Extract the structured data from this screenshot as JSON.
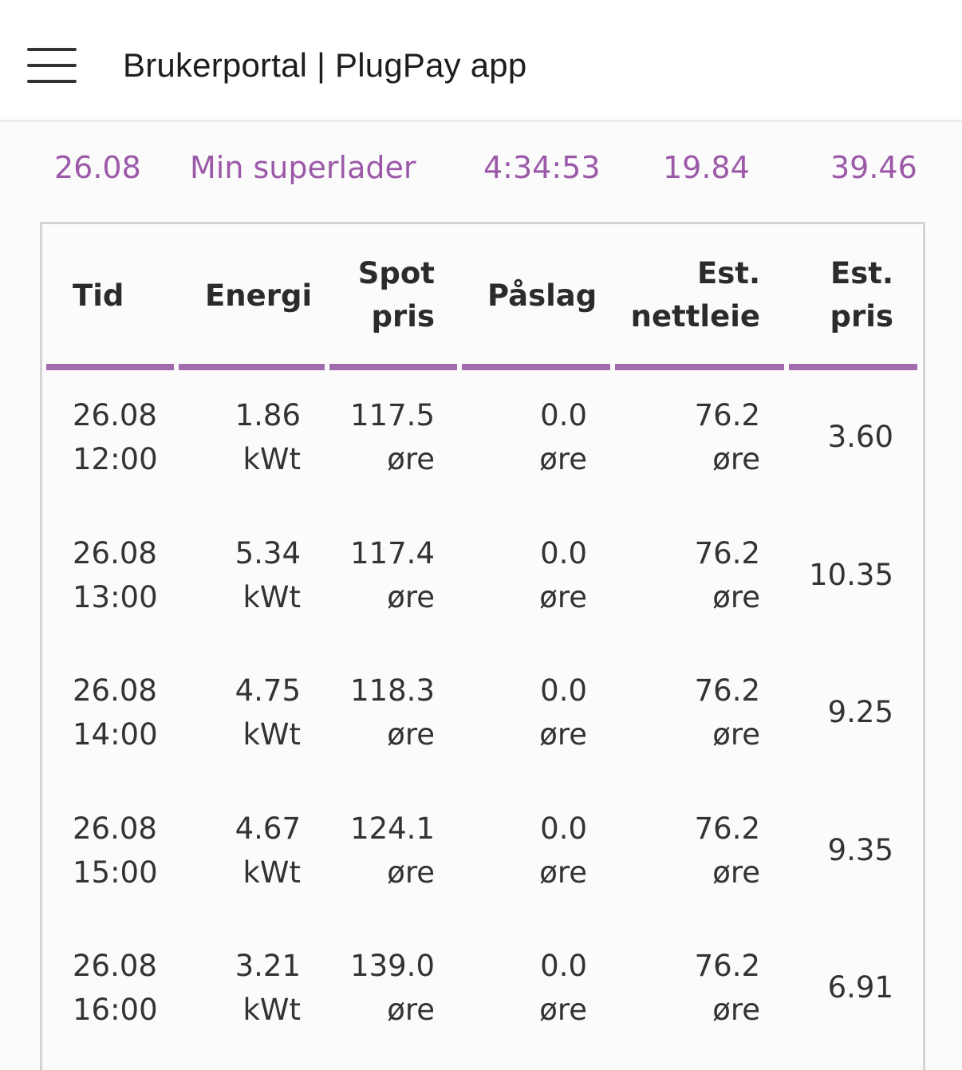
{
  "header": {
    "title": "Brukerportal | PlugPay app"
  },
  "summary": {
    "date": "26.08",
    "charger_name": "Min superlader",
    "duration": "4:34:53",
    "energy": "19.84",
    "cost": "39.46"
  },
  "table": {
    "columns": {
      "time": "Tid",
      "energy": "Energi",
      "spot_line1": "Spot",
      "spot_line2": "pris",
      "markup": "Påslag",
      "grid_line1": "Est.",
      "grid_line2": "nettleie",
      "price_line1": "Est.",
      "price_line2": "pris"
    },
    "rows": [
      {
        "date": "26.08",
        "time": "12:00",
        "energy": "1.86",
        "energy_unit": "kWt",
        "spot": "117.5",
        "spot_unit": "øre",
        "markup": "0.0",
        "markup_unit": "øre",
        "grid": "76.2",
        "grid_unit": "øre",
        "price": "3.60"
      },
      {
        "date": "26.08",
        "time": "13:00",
        "energy": "5.34",
        "energy_unit": "kWt",
        "spot": "117.4",
        "spot_unit": "øre",
        "markup": "0.0",
        "markup_unit": "øre",
        "grid": "76.2",
        "grid_unit": "øre",
        "price": "10.35"
      },
      {
        "date": "26.08",
        "time": "14:00",
        "energy": "4.75",
        "energy_unit": "kWt",
        "spot": "118.3",
        "spot_unit": "øre",
        "markup": "0.0",
        "markup_unit": "øre",
        "grid": "76.2",
        "grid_unit": "øre",
        "price": "9.25"
      },
      {
        "date": "26.08",
        "time": "15:00",
        "energy": "4.67",
        "energy_unit": "kWt",
        "spot": "124.1",
        "spot_unit": "øre",
        "markup": "0.0",
        "markup_unit": "øre",
        "grid": "76.2",
        "grid_unit": "øre",
        "price": "9.35"
      },
      {
        "date": "26.08",
        "time": "16:00",
        "energy": "3.21",
        "energy_unit": "kWt",
        "spot": "139.0",
        "spot_unit": "øre",
        "markup": "0.0",
        "markup_unit": "øre",
        "grid": "76.2",
        "grid_unit": "øre",
        "price": "6.91"
      }
    ]
  },
  "colors": {
    "accent": "#9b59a8",
    "underline": "#a06cad"
  }
}
